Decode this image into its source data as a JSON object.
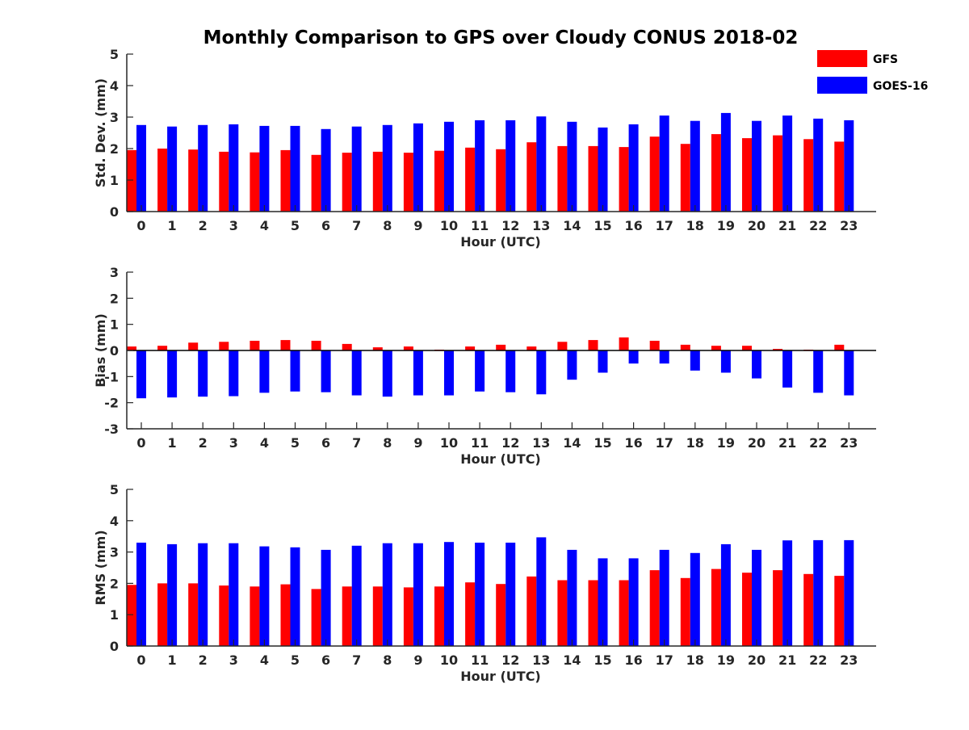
{
  "title": "Monthly Comparison to GPS over Cloudy CONUS 2018-02",
  "colors": {
    "gfs": "#ff0000",
    "goes": "#0000ff",
    "axis": "#262626"
  },
  "legend": {
    "placement": "top-right",
    "items": [
      "GFS",
      "GOES-16"
    ]
  },
  "chart_data": [
    {
      "type": "bar",
      "ylabel": "Std. Dev. (mm)",
      "xlabel": "Hour (UTC)",
      "ylim": [
        0,
        5
      ],
      "yticks": [
        0,
        1,
        2,
        3,
        4,
        5
      ],
      "categories": [
        "0",
        "1",
        "2",
        "3",
        "4",
        "5",
        "6",
        "7",
        "8",
        "9",
        "10",
        "11",
        "12",
        "13",
        "14",
        "15",
        "16",
        "17",
        "18",
        "19",
        "20",
        "21",
        "22",
        "23"
      ],
      "series": [
        {
          "name": "GFS",
          "values": [
            1.95,
            2.0,
            1.97,
            1.9,
            1.88,
            1.95,
            1.8,
            1.87,
            1.9,
            1.87,
            1.93,
            2.03,
            1.98,
            2.2,
            2.08,
            2.08,
            2.05,
            2.38,
            2.15,
            2.46,
            2.33,
            2.42,
            2.3,
            2.22
          ]
        },
        {
          "name": "GOES-16",
          "values": [
            2.75,
            2.7,
            2.75,
            2.77,
            2.72,
            2.72,
            2.62,
            2.7,
            2.75,
            2.8,
            2.85,
            2.9,
            2.9,
            3.02,
            2.85,
            2.67,
            2.77,
            3.05,
            2.88,
            3.13,
            2.88,
            3.05,
            2.95,
            2.9
          ]
        }
      ]
    },
    {
      "type": "bar",
      "ylabel": "Bias (mm)",
      "xlabel": "Hour (UTC)",
      "ylim": [
        -3,
        3
      ],
      "yticks": [
        -3,
        -2,
        -1,
        0,
        1,
        2,
        3
      ],
      "categories": [
        "0",
        "1",
        "2",
        "3",
        "4",
        "5",
        "6",
        "7",
        "8",
        "9",
        "10",
        "11",
        "12",
        "13",
        "14",
        "15",
        "16",
        "17",
        "18",
        "19",
        "20",
        "21",
        "22",
        "23"
      ],
      "series": [
        {
          "name": "GFS",
          "values": [
            0.15,
            0.18,
            0.3,
            0.33,
            0.37,
            0.4,
            0.37,
            0.25,
            0.12,
            0.15,
            0.03,
            0.15,
            0.22,
            0.15,
            0.33,
            0.4,
            0.5,
            0.37,
            0.22,
            0.18,
            0.18,
            0.06,
            0.03,
            0.22
          ]
        },
        {
          "name": "GOES-16",
          "values": [
            -1.83,
            -1.8,
            -1.77,
            -1.75,
            -1.62,
            -1.57,
            -1.6,
            -1.72,
            -1.77,
            -1.72,
            -1.72,
            -1.57,
            -1.6,
            -1.68,
            -1.12,
            -0.85,
            -0.5,
            -0.5,
            -0.77,
            -0.85,
            -1.07,
            -1.42,
            -1.62,
            -1.72
          ]
        }
      ]
    },
    {
      "type": "bar",
      "ylabel": "RMS (mm)",
      "xlabel": "Hour (UTC)",
      "ylim": [
        0,
        5
      ],
      "yticks": [
        0,
        1,
        2,
        3,
        4,
        5
      ],
      "categories": [
        "0",
        "1",
        "2",
        "3",
        "4",
        "5",
        "6",
        "7",
        "8",
        "9",
        "10",
        "11",
        "12",
        "13",
        "14",
        "15",
        "16",
        "17",
        "18",
        "19",
        "20",
        "21",
        "22",
        "23"
      ],
      "series": [
        {
          "name": "GFS",
          "values": [
            1.95,
            2.0,
            2.0,
            1.93,
            1.9,
            1.97,
            1.82,
            1.9,
            1.9,
            1.87,
            1.9,
            2.03,
            1.98,
            2.22,
            2.1,
            2.1,
            2.1,
            2.42,
            2.17,
            2.46,
            2.34,
            2.42,
            2.3,
            2.24
          ]
        },
        {
          "name": "GOES-16",
          "values": [
            3.3,
            3.25,
            3.28,
            3.28,
            3.18,
            3.15,
            3.07,
            3.2,
            3.28,
            3.28,
            3.32,
            3.3,
            3.3,
            3.47,
            3.07,
            2.8,
            2.8,
            3.07,
            2.97,
            3.25,
            3.07,
            3.37,
            3.38,
            3.38
          ]
        }
      ]
    }
  ]
}
